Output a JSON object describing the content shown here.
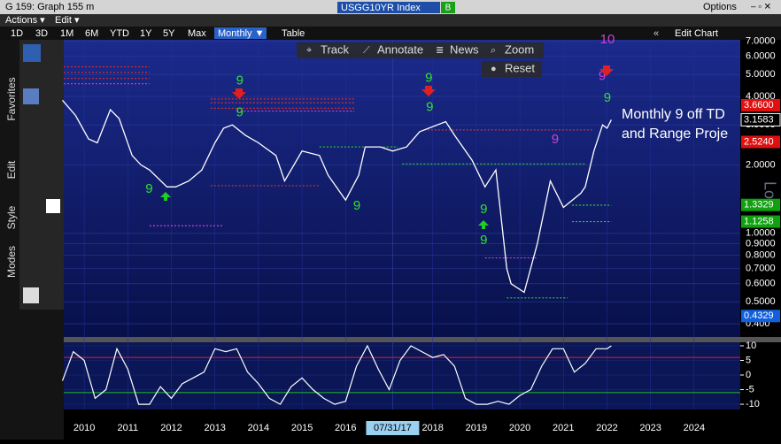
{
  "window": {
    "title": "G 159: Graph 155 m",
    "ticker": "USGG10YR Index",
    "badge": "B",
    "options": "Options"
  },
  "menu": [
    "Actions ▾",
    "Edit ▾"
  ],
  "periods": [
    "1D",
    "3D",
    "1M",
    "6M",
    "YTD",
    "1Y",
    "5Y",
    "Max"
  ],
  "frequency": "Monthly ▼",
  "table": "Table",
  "edit_chart": "Edit Chart",
  "tools": [
    "Track",
    "Annotate",
    "News",
    "Zoom",
    "Reset"
  ],
  "side_tabs": [
    "Favorites",
    "Edit",
    "Style",
    "Modes"
  ],
  "overlay": [
    "Monthly 9 off TD",
    "and Range Proje"
  ],
  "watermark": "Lo",
  "chart_data": {
    "type": "line",
    "log_scale": true,
    "xlim": [
      2010.03,
      2025.56
    ],
    "xticks": [
      {
        "value": 2010.5,
        "label": "2010"
      },
      {
        "value": 2011.5,
        "label": "2011"
      },
      {
        "value": 2012.5,
        "label": "2012"
      },
      {
        "value": 2013.5,
        "label": "2013"
      },
      {
        "value": 2014.5,
        "label": "2014"
      },
      {
        "value": 2015.5,
        "label": "2015"
      },
      {
        "value": 2016.5,
        "label": "2016"
      },
      {
        "value": 2017.58,
        "label": "07/31/17"
      },
      {
        "value": 2018.5,
        "label": "2018"
      },
      {
        "value": 2019.5,
        "label": "2019"
      },
      {
        "value": 2020.5,
        "label": "2020"
      },
      {
        "value": 2021.5,
        "label": "2021"
      },
      {
        "value": 2022.5,
        "label": "2022"
      },
      {
        "value": 2023.5,
        "label": "2023"
      },
      {
        "value": 2024.5,
        "label": "2024"
      }
    ],
    "ylim": [
      0.35,
      7.1
    ],
    "yticks": [
      {
        "value": 0.4,
        "label": "0.400"
      },
      {
        "value": 0.5,
        "label": "0.5000"
      },
      {
        "value": 0.6,
        "label": "0.6000"
      },
      {
        "value": 0.7,
        "label": "0.7000"
      },
      {
        "value": 0.8,
        "label": "0.8000"
      },
      {
        "value": 0.9,
        "label": "0.9000"
      },
      {
        "value": 1,
        "label": "1.0000"
      },
      {
        "value": 2,
        "label": "2.0000"
      },
      {
        "value": 3,
        "label": "3.0000"
      },
      {
        "value": 4,
        "label": "4.0000"
      },
      {
        "value": 5,
        "label": "5.0000"
      },
      {
        "value": 6,
        "label": "6.0000"
      },
      {
        "value": 7,
        "label": "7.0000"
      }
    ],
    "price_labels": [
      {
        "value": 3.66,
        "label": "3.6600",
        "color": "#e01010"
      },
      {
        "value": 3.1583,
        "label": "3.1583",
        "color": "#ffffff"
      },
      {
        "value": 2.524,
        "label": "2.5240",
        "color": "#e01010"
      },
      {
        "value": 1.3329,
        "label": "1.3329",
        "color": "#10a010"
      },
      {
        "value": 1.1258,
        "label": "1.1258",
        "color": "#10a010"
      },
      {
        "value": 0.4329,
        "label": "0.4329",
        "color": "#1060e0"
      }
    ],
    "series": [
      {
        "color": "#ffffff",
        "x": [
          2010.0,
          2010.3,
          2010.6,
          2010.8,
          2011.1,
          2011.3,
          2011.6,
          2011.8,
          2012.0,
          2012.4,
          2012.6,
          2012.9,
          2013.2,
          2013.5,
          2013.7,
          2013.9,
          2014.2,
          2014.5,
          2014.9,
          2015.1,
          2015.5,
          2015.9,
          2016.1,
          2016.5,
          2016.8,
          2016.95,
          2017.3,
          2017.58,
          2017.9,
          2018.2,
          2018.8,
          2019.0,
          2019.4,
          2019.7,
          2019.95,
          2020.2,
          2020.3,
          2020.6,
          2020.9,
          2021.2,
          2021.5,
          2021.9,
          2022.0,
          2022.2,
          2022.4,
          2022.5,
          2022.6
        ],
        "values": [
          3.85,
          3.3,
          2.6,
          2.5,
          3.5,
          3.2,
          2.2,
          2.0,
          1.9,
          1.6,
          1.6,
          1.7,
          1.9,
          2.5,
          2.9,
          3.0,
          2.7,
          2.5,
          2.2,
          1.7,
          2.3,
          2.2,
          1.8,
          1.4,
          1.8,
          2.4,
          2.4,
          2.3,
          2.4,
          2.8,
          3.1,
          2.7,
          2.1,
          1.6,
          1.9,
          0.7,
          0.6,
          0.55,
          0.9,
          1.7,
          1.3,
          1.5,
          1.6,
          2.3,
          3.0,
          2.9,
          3.1583
        ]
      }
    ],
    "levels": [
      {
        "value": 5.4,
        "x": [
          2010.03,
          2012.0
        ],
        "color": "#d03030"
      },
      {
        "value": 5.1,
        "x": [
          2010.03,
          2012.0
        ],
        "color": "#d03030"
      },
      {
        "value": 4.8,
        "x": [
          2010.03,
          2012.0
        ],
        "color": "#d03030"
      },
      {
        "value": 4.55,
        "x": [
          2010.03,
          2012.0
        ],
        "color": "#d040d0"
      },
      {
        "value": 3.9,
        "x": [
          2013.4,
          2016.7
        ],
        "color": "#d03030"
      },
      {
        "value": 3.75,
        "x": [
          2013.4,
          2016.7
        ],
        "color": "#d03030"
      },
      {
        "value": 3.55,
        "x": [
          2013.4,
          2016.7
        ],
        "color": "#d03030"
      },
      {
        "value": 3.45,
        "x": [
          2014.0,
          2016.7
        ],
        "color": "#d040d0"
      },
      {
        "value": 1.62,
        "x": [
          2013.4,
          2015.9
        ],
        "color": "#d03030"
      },
      {
        "value": 2.4,
        "x": [
          2015.9,
          2017.7
        ],
        "color": "#30d030"
      },
      {
        "value": 2.02,
        "x": [
          2017.8,
          2022.0
        ],
        "color": "#30d030"
      },
      {
        "value": 2.85,
        "x": [
          2018.3,
          2022.2
        ],
        "color": "#d03030"
      },
      {
        "value": 0.78,
        "x": [
          2019.7,
          2020.9
        ],
        "color": "#d040d0"
      },
      {
        "value": 1.33,
        "x": [
          2021.7,
          2022.6
        ],
        "color": "#30d030"
      },
      {
        "value": 1.126,
        "x": [
          2021.7,
          2022.6
        ],
        "color": "#30d030"
      },
      {
        "value": 0.52,
        "x": [
          2020.2,
          2021.6
        ],
        "color": "#30d030"
      },
      {
        "value": 1.08,
        "x": [
          2012.0,
          2013.7
        ],
        "color": "#d040d0"
      }
    ],
    "annotations": [
      {
        "text": "9",
        "x": 2014.07,
        "y": 4.67,
        "color": "#30e030"
      },
      {
        "text": "9",
        "x": 2014.07,
        "y": 3.39,
        "color": "#30e030"
      },
      {
        "text": "9",
        "x": 2011.99,
        "y": 1.56,
        "color": "#30e030"
      },
      {
        "text": "9",
        "x": 2018.41,
        "y": 4.8,
        "color": "#30e030"
      },
      {
        "text": "9",
        "x": 2018.43,
        "y": 3.58,
        "color": "#30e030"
      },
      {
        "text": "9",
        "x": 2016.76,
        "y": 1.32,
        "color": "#30e030"
      },
      {
        "text": "9",
        "x": 2019.67,
        "y": 1.27,
        "color": "#30e030"
      },
      {
        "text": "9",
        "x": 2019.67,
        "y": 0.93,
        "color": "#30e030"
      },
      {
        "text": "9",
        "x": 2021.31,
        "y": 2.58,
        "color": "#d040d0"
      },
      {
        "text": "9",
        "x": 2022.39,
        "y": 4.89,
        "color": "#d040d0"
      },
      {
        "text": "9",
        "x": 2022.51,
        "y": 3.93,
        "color": "#30e030"
      },
      {
        "text": "10",
        "x": 2022.51,
        "y": 7.1,
        "color": "#d040d0"
      }
    ],
    "oscillator": {
      "color": "#ffffff",
      "ylim": [
        -11.8,
        11.2
      ],
      "yticks": [
        10,
        5,
        0,
        -5,
        -10
      ],
      "upper": 6,
      "lower": -6,
      "x": [
        2010.0,
        2010.25,
        2010.5,
        2010.75,
        2011.0,
        2011.25,
        2011.5,
        2011.75,
        2012.0,
        2012.25,
        2012.5,
        2012.75,
        2013.0,
        2013.25,
        2013.5,
        2013.75,
        2014.0,
        2014.25,
        2014.5,
        2014.75,
        2015.0,
        2015.25,
        2015.5,
        2015.75,
        2016.0,
        2016.25,
        2016.5,
        2016.75,
        2017.0,
        2017.25,
        2017.5,
        2017.75,
        2018.0,
        2018.25,
        2018.5,
        2018.75,
        2019.0,
        2019.25,
        2019.5,
        2019.75,
        2020.0,
        2020.25,
        2020.5,
        2020.75,
        2021.0,
        2021.25,
        2021.5,
        2021.75,
        2022.0,
        2022.25,
        2022.5,
        2022.6
      ],
      "values": [
        -2,
        8,
        5,
        -8,
        -5,
        9,
        2,
        -10,
        -10,
        -4,
        -8,
        -3,
        -1,
        1,
        9,
        8,
        9,
        1,
        -3,
        -8,
        -10,
        -4,
        -1,
        -5,
        -8,
        -10,
        -9,
        3,
        10,
        2,
        -5,
        5,
        10,
        8,
        6,
        7,
        3,
        -8,
        -10,
        -10,
        -9,
        -10,
        -7,
        -5,
        3,
        9,
        9,
        1,
        4,
        9,
        9,
        10
      ]
    }
  }
}
